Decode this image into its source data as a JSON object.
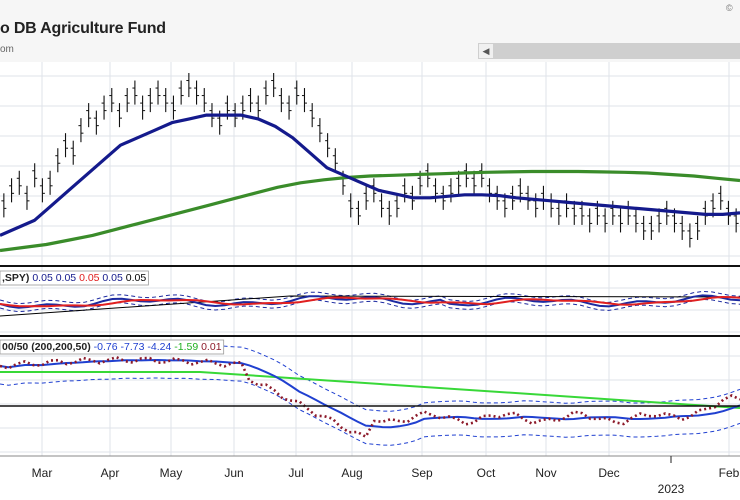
{
  "header": {
    "title": "o DB Agriculture Fund",
    "subtitle": "om",
    "copyright": "©"
  },
  "colors": {
    "bg": "#ffffff",
    "grid": "#dfe3ea",
    "ma_short": "#141a8c",
    "ma_long": "#3a8c2a",
    "rs_line": "#1c2aa0",
    "rs_ma": "#e02020",
    "rs_ref": "#000000",
    "momentum": "#8c1a2a",
    "bb_mid": "#2040d0",
    "bb_band": "#2040d0",
    "ma_200": "#38d838"
  },
  "chart_data": [
    {
      "type": "line",
      "panel": "price",
      "title": "o DB Agriculture Fund",
      "x_labels": [
        "Mar",
        "Apr",
        "May",
        "Jun",
        "Jul",
        "Aug",
        "Sep",
        "Oct",
        "Nov",
        "Dec",
        "Feb"
      ],
      "year_label": "2023",
      "series": [
        {
          "kind": "ohlc",
          "values": [
            34,
            36,
            37,
            35,
            38,
            36,
            37,
            40,
            42,
            41,
            44,
            46,
            45,
            47,
            48,
            46,
            48,
            49,
            47,
            48,
            49,
            48,
            47,
            49,
            50,
            49,
            48,
            46,
            45,
            47,
            46,
            47,
            48,
            47,
            49,
            50,
            48,
            47,
            49,
            48,
            46,
            44,
            42,
            40,
            37,
            34,
            33,
            35,
            36,
            34,
            33,
            34,
            36,
            35,
            37,
            38,
            36,
            35,
            36,
            37,
            38,
            37,
            38,
            36,
            35,
            34,
            35,
            36,
            35,
            34,
            35,
            34,
            33,
            34,
            33,
            33,
            32,
            33,
            32,
            33,
            32,
            33,
            32,
            31,
            31,
            32,
            33,
            32,
            31,
            30,
            31,
            33,
            34,
            35,
            33,
            32
          ]
        },
        {
          "kind": "ma_short",
          "values": [
            30,
            31,
            32,
            34,
            36,
            38,
            40,
            42,
            43,
            44,
            45,
            45.5,
            46,
            46,
            46,
            45.5,
            44.5,
            43,
            41,
            39,
            38,
            37,
            36,
            35.5,
            35,
            35,
            35.2,
            35.4,
            35.4,
            35.3,
            35,
            34.8,
            34.6,
            34.4,
            34.2,
            34,
            33.8,
            33.6,
            33.4,
            33.2,
            33,
            32.8,
            32.8,
            33
          ]
        },
        {
          "kind": "ma_long",
          "values": [
            28,
            28.4,
            28.8,
            29.4,
            30,
            30.8,
            31.6,
            32.4,
            33.2,
            34,
            34.8,
            35.6,
            36.4,
            37,
            37.4,
            37.7,
            37.9,
            38,
            38.1,
            38.2,
            38.3,
            38.4,
            38.45,
            38.5,
            38.5,
            38.5,
            38.45,
            38.4,
            38.3,
            38.1,
            37.9,
            37.6,
            37.3
          ]
        }
      ]
    },
    {
      "type": "line",
      "panel": "relative-strength",
      "legend_prefix": ",SPY)",
      "legend_values": [
        {
          "text": "0.05",
          "color": "#141a8c"
        },
        {
          "text": "0.05",
          "color": "#141a8c"
        },
        {
          "text": "0.05",
          "color": "#e02020"
        },
        {
          "text": "0.05",
          "color": "#141a8c"
        },
        {
          "text": "0.05",
          "color": "#000000"
        }
      ]
    },
    {
      "type": "line",
      "panel": "bollinger",
      "legend_prefix": "00/50 (200,200,50)",
      "legend_values": [
        {
          "text": "-0.76",
          "color": "#2040d0"
        },
        {
          "text": "-7.73",
          "color": "#2040d0"
        },
        {
          "text": "-4.24",
          "color": "#2040d0"
        },
        {
          "text": "-1.59",
          "color": "#20b020"
        },
        {
          "text": "0.01",
          "color": "#8c1a2a"
        }
      ]
    }
  ]
}
